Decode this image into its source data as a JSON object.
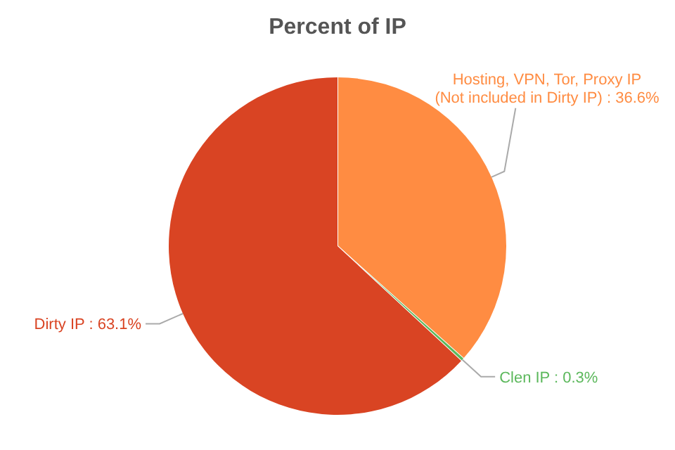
{
  "chart_data": {
    "type": "pie",
    "title": "Percent of IP",
    "categories": [
      "Hosting, VPN, Tor, Proxy IP (Not included in Dirty IP)",
      "Clen IP",
      "Dirty IP"
    ],
    "values": [
      36.6,
      0.3,
      63.1
    ],
    "value_labels": [
      "36.6%",
      "0.3%",
      "63.1%"
    ],
    "colors": [
      "#ff8c42",
      "#5cb85c",
      "#d94423"
    ]
  }
}
